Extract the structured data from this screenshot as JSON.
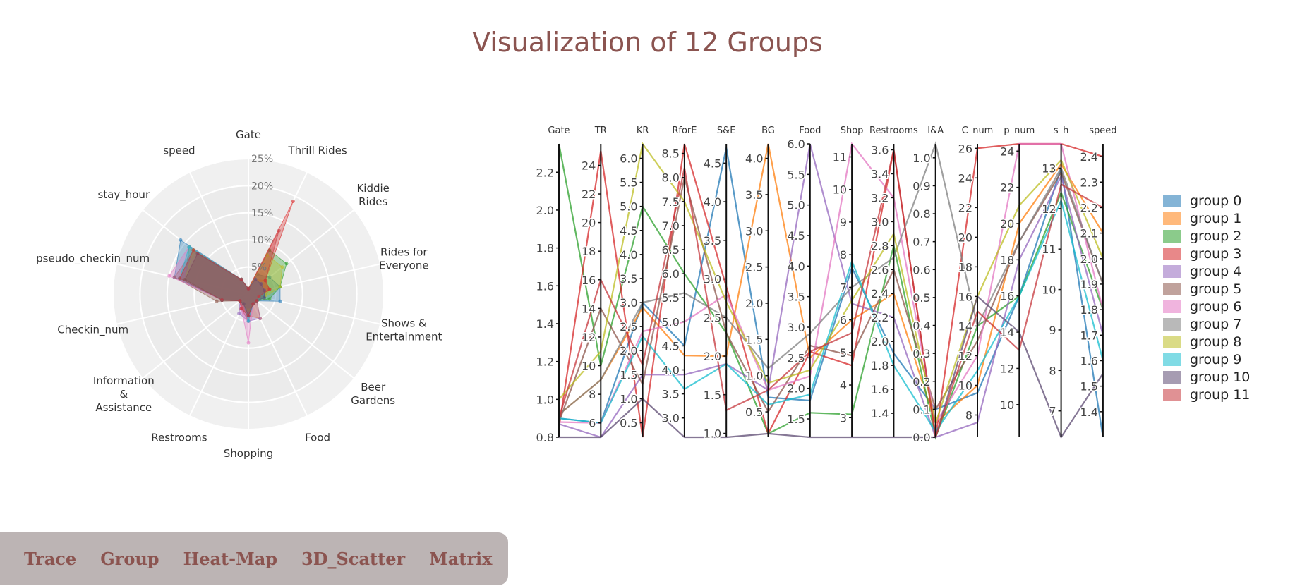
{
  "title": "Visualization of 12 Groups",
  "nav": {
    "items": [
      "Trace",
      "Group",
      "Heat-Map",
      "3D_Scatter",
      "Matrix"
    ]
  },
  "colors": [
    "#1f77b4",
    "#ff7f0e",
    "#2ca02c",
    "#d62728",
    "#9467bd",
    "#8c564b",
    "#e377c2",
    "#7f7f7f",
    "#bcbd22",
    "#17becf",
    "#5c4a72",
    "#c6373c"
  ],
  "legend": [
    "group 0",
    "group 1",
    "group 2",
    "group 3",
    "group 4",
    "group 5",
    "group 6",
    "group 7",
    "group 8",
    "group 9",
    "group 10",
    "group 11"
  ],
  "chart_data": [
    {
      "type": "radar",
      "axes": [
        "Gate",
        "Thrill Rides",
        "Kiddie\nRides",
        "Rides for\nEveryone",
        "Shows &\nEntertainment",
        "Beer\nGardens",
        "Food",
        "Shopping",
        "Restrooms",
        "Information\n&\nAssistance",
        "Checkin_num",
        "pseudo_checkin_num",
        "stay_hour",
        "speed"
      ],
      "radial_ticks": [
        "5%",
        "10%",
        "15%",
        "20%",
        "25%"
      ],
      "radial_range": [
        0,
        25
      ],
      "series": [
        {
          "values": [
            1,
            4,
            5,
            6,
            6,
            2,
            2,
            3,
            2,
            2,
            5,
            14,
            16,
            3
          ]
        },
        {
          "values": [
            1,
            3,
            4,
            4,
            3,
            2,
            5,
            4,
            2,
            2,
            5,
            12,
            12,
            3
          ]
        },
        {
          "values": [
            1,
            9,
            9,
            6,
            4,
            2,
            2,
            3,
            2,
            2,
            5,
            12,
            14,
            3
          ]
        },
        {
          "values": [
            1,
            19,
            4,
            4,
            2,
            2,
            2,
            5,
            3,
            2,
            5,
            13,
            13,
            3
          ]
        },
        {
          "values": [
            1,
            3,
            3,
            3,
            3,
            2,
            5,
            5,
            4,
            2,
            5,
            13,
            12,
            3
          ]
        },
        {
          "values": [
            1,
            3,
            3,
            3,
            3,
            2,
            2,
            4,
            3,
            2,
            6,
            14,
            13,
            3
          ]
        },
        {
          "values": [
            1,
            3,
            3,
            3,
            2,
            2,
            2,
            9,
            3,
            2,
            5,
            15,
            14,
            3
          ]
        },
        {
          "values": [
            1,
            3,
            3,
            3,
            3,
            2,
            2,
            4,
            2,
            2,
            5,
            12,
            12,
            3
          ]
        },
        {
          "values": [
            1,
            8,
            8,
            6,
            3,
            2,
            2,
            3,
            2,
            2,
            5,
            12,
            13,
            3
          ]
        },
        {
          "values": [
            1,
            3,
            3,
            3,
            3,
            2,
            2,
            5,
            2,
            2,
            5,
            13,
            14,
            3
          ]
        },
        {
          "values": [
            1,
            3,
            3,
            3,
            3,
            2,
            2,
            4,
            2,
            2,
            5,
            12,
            12,
            3
          ]
        },
        {
          "values": [
            1,
            13,
            4,
            4,
            2,
            2,
            2,
            4,
            3,
            2,
            5,
            13,
            13,
            3
          ]
        }
      ]
    },
    {
      "type": "parallel_coordinates",
      "dimensions": [
        {
          "label": "Gate",
          "ticks": [
            "0.8",
            "1.0",
            "1.2",
            "1.4",
            "1.6",
            "1.8",
            "2.0",
            "2.2"
          ],
          "range": [
            0.8,
            2.35
          ]
        },
        {
          "label": "TR",
          "ticks": [
            "6",
            "8",
            "10",
            "12",
            "14",
            "16",
            "18",
            "20",
            "22",
            "24"
          ],
          "range": [
            5,
            25.5
          ]
        },
        {
          "label": "KR",
          "ticks": [
            "0.5",
            "1.0",
            "1.5",
            "2.0",
            "2.5",
            "3.0",
            "3.5",
            "4.0",
            "4.5",
            "5.0",
            "5.5",
            "6.0"
          ],
          "range": [
            0.2,
            6.3
          ]
        },
        {
          "label": "RforE",
          "ticks": [
            "3.0",
            "3.5",
            "4.0",
            "4.5",
            "5.0",
            "5.5",
            "6.0",
            "6.5",
            "7.0",
            "7.5",
            "8.0",
            "8.5"
          ],
          "range": [
            2.6,
            8.7
          ]
        },
        {
          "label": "S&E",
          "ticks": [
            "1.0",
            "1.5",
            "2.0",
            "2.5",
            "3.0",
            "3.5",
            "4.0",
            "4.5"
          ],
          "range": [
            0.95,
            4.75
          ]
        },
        {
          "label": "BG",
          "ticks": [
            "0.5",
            "1.0",
            "1.5",
            "2.0",
            "2.5",
            "3.0",
            "3.5",
            "4.0"
          ],
          "range": [
            0.15,
            4.2
          ]
        },
        {
          "label": "Food",
          "ticks": [
            "1.5",
            "2.0",
            "2.5",
            "3.0",
            "3.5",
            "4.0",
            "4.5",
            "5.0",
            "5.5",
            "6.0"
          ],
          "range": [
            1.2,
            6.0
          ]
        },
        {
          "label": "Shop",
          "ticks": [
            "3",
            "4",
            "5",
            "6",
            "7",
            "8",
            "9",
            "10",
            "11"
          ],
          "range": [
            2.4,
            11.4
          ]
        },
        {
          "label": "Restrooms",
          "ticks": [
            "1.4",
            "1.6",
            "1.8",
            "2.0",
            "2.2",
            "2.4",
            "2.6",
            "2.8",
            "3.0",
            "3.2",
            "3.4",
            "3.6"
          ],
          "range": [
            1.2,
            3.65
          ]
        },
        {
          "label": "I&A",
          "ticks": [
            "0.0",
            "0.1",
            "0.2",
            "0.3",
            "0.4",
            "0.5",
            "0.6",
            "0.7",
            "0.8",
            "0.9",
            "1.0"
          ],
          "range": [
            0,
            1.05
          ]
        },
        {
          "label": "C_num",
          "ticks": [
            "8",
            "10",
            "12",
            "14",
            "16",
            "18",
            "20",
            "22",
            "24",
            "26"
          ],
          "range": [
            6.5,
            26.3
          ]
        },
        {
          "label": "p_num",
          "ticks": [
            "10",
            "12",
            "14",
            "16",
            "18",
            "20",
            "22",
            "24"
          ],
          "range": [
            8.2,
            24.4
          ]
        },
        {
          "label": "s_h",
          "ticks": [
            "7",
            "8",
            "9",
            "10",
            "11",
            "12",
            "13"
          ],
          "range": [
            6.35,
            13.6
          ]
        },
        {
          "label": "speed",
          "ticks": [
            "1.4",
            "1.5",
            "1.6",
            "1.7",
            "1.8",
            "1.9",
            "2.0",
            "2.1",
            "2.2",
            "2.3",
            "2.4"
          ],
          "range": [
            1.3,
            2.45
          ]
        }
      ],
      "series": [
        {
          "values": [
            0.9,
            6,
            3.0,
            4.5,
            4.7,
            0.7,
            1.8,
            7.6,
            1.9,
            0.1,
            9.5,
            16,
            13.0,
            1.3
          ]
        },
        {
          "values": [
            0.92,
            9,
            2.9,
            4.3,
            2.0,
            4.2,
            2.5,
            6.0,
            2.4,
            0.05,
            10,
            20,
            13.1,
            2.1
          ]
        },
        {
          "values": [
            2.35,
            10,
            5.0,
            6.0,
            2.3,
            0.2,
            1.6,
            3.1,
            2.8,
            0,
            14,
            16,
            12.4,
            1.8
          ]
        },
        {
          "values": [
            0.85,
            25,
            0.2,
            8.7,
            2.9,
            0.2,
            2.6,
            4.6,
            3.6,
            0,
            26,
            24.4,
            13.6,
            2.4
          ]
        },
        {
          "values": [
            0.87,
            5,
            1.5,
            3.9,
            1.9,
            0.8,
            6.0,
            6.5,
            2.2,
            0,
            7.5,
            18,
            12.8,
            1.7
          ]
        },
        {
          "values": [
            0.88,
            14,
            1.3,
            8.0,
            2.3,
            0.5,
            2.7,
            4.9,
            2.6,
            0.1,
            13,
            19,
            12.9,
            1.9
          ]
        },
        {
          "values": [
            0.88,
            6,
            2.4,
            5.0,
            2.8,
            0.8,
            2.2,
            11.4,
            3.2,
            0.05,
            12,
            24.4,
            13.6,
            1.8
          ]
        },
        {
          "values": [
            0.92,
            9,
            3.0,
            5.6,
            2.5,
            1.1,
            2.9,
            7.0,
            2.7,
            1.05,
            14,
            19,
            13.0,
            1.9
          ]
        },
        {
          "values": [
            1.0,
            11,
            6.3,
            7.5,
            2.7,
            0.9,
            2.3,
            6.6,
            2.9,
            0.05,
            16,
            21,
            13.2,
            2.0
          ]
        },
        {
          "values": [
            0.9,
            6,
            2.3,
            3.6,
            1.9,
            0.6,
            1.9,
            7.8,
            1.8,
            0.02,
            11,
            16,
            12.2,
            1.6
          ]
        },
        {
          "values": [
            0.8,
            5,
            1.0,
            2.6,
            0.95,
            0.2,
            1.2,
            2.4,
            1.2,
            0,
            16,
            14,
            6.35,
            1.55
          ]
        },
        {
          "values": [
            0.9,
            16,
            1.7,
            8.2,
            1.3,
            0.8,
            2.6,
            5.6,
            3.6,
            0,
            15,
            13,
            12.6,
            2.2
          ]
        }
      ]
    }
  ]
}
